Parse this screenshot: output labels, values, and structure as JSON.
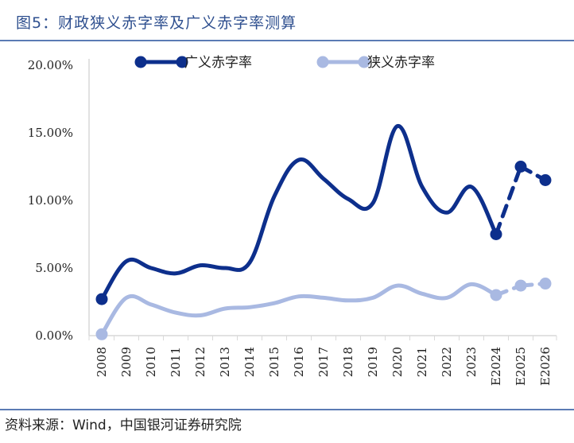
{
  "figure": {
    "title": "图5：财政狭义赤字率及广义赤字率测算",
    "source": "资料来源：Wind，中国银河证券研究院"
  },
  "chart_data": {
    "type": "line",
    "categories": [
      "2008",
      "2009",
      "2010",
      "2011",
      "2012",
      "2013",
      "2014",
      "2015",
      "2016",
      "2017",
      "2018",
      "2019",
      "2020",
      "2021",
      "2022",
      "2023",
      "E2024",
      "E2025",
      "E2026"
    ],
    "y_tick_labels": [
      "0.00%",
      "5.00%",
      "10.00%",
      "15.00%",
      "20.00%"
    ],
    "ylim": [
      0,
      20
    ],
    "legend_position": "top",
    "grid": false,
    "series": [
      {
        "name": "广义赤字率",
        "color": "#0d2f8c",
        "values": [
          2.7,
          5.5,
          5.0,
          4.6,
          5.2,
          5.0,
          5.4,
          10.3,
          13.0,
          11.6,
          10.1,
          9.8,
          15.5,
          11.0,
          9.1,
          11.0,
          7.5,
          12.5,
          11.5
        ],
        "projected_from_index": 16
      },
      {
        "name": "狭义赤字率",
        "color": "#a9b9e2",
        "values": [
          0.1,
          2.8,
          2.3,
          1.7,
          1.5,
          2.0,
          2.1,
          2.4,
          2.9,
          2.8,
          2.6,
          2.8,
          3.7,
          3.1,
          2.8,
          3.8,
          3.0,
          3.7,
          3.85
        ],
        "projected_from_index": 16
      }
    ]
  }
}
